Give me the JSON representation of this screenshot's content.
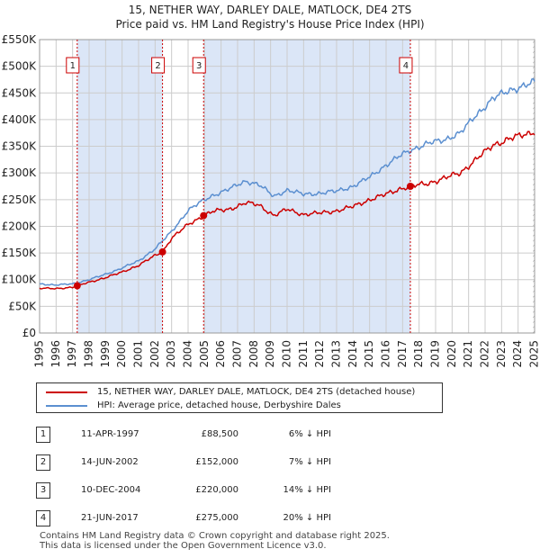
{
  "title_line1": "15, NETHER WAY, DARLEY DALE, MATLOCK, DE4 2TS",
  "title_line2": "Price paid vs. HM Land Registry's House Price Index (HPI)",
  "legend": {
    "property_label": "15, NETHER WAY, DARLEY DALE, MATLOCK, DE4 2TS (detached house)",
    "hpi_label": "HPI: Average price, detached house, Derbyshire Dales"
  },
  "colors": {
    "property": "#cc0000",
    "hpi": "#5b8fd0",
    "shade": "#dbe6f7",
    "grid": "#cccccc",
    "marker_line": "#cc0000"
  },
  "chart_data": {
    "type": "line",
    "title": "Price paid vs. HM Land Registry's House Price Index (HPI)",
    "x_ticks": [
      "1995",
      "1996",
      "1997",
      "1998",
      "1999",
      "2000",
      "2001",
      "2002",
      "2003",
      "2004",
      "2005",
      "2006",
      "2007",
      "2008",
      "2009",
      "2010",
      "2011",
      "2012",
      "2013",
      "2014",
      "2015",
      "2016",
      "2017",
      "2018",
      "2019",
      "2020",
      "2021",
      "2022",
      "2023",
      "2024",
      "2025"
    ],
    "y_ticks": [
      "£0",
      "£50K",
      "£100K",
      "£150K",
      "£200K",
      "£250K",
      "£300K",
      "£350K",
      "£400K",
      "£450K",
      "£500K",
      "£550K"
    ],
    "xlim": [
      1995.0,
      2025.0
    ],
    "ylim": [
      0,
      550000
    ],
    "hpi_anchors": [
      [
        1995.0,
        92000
      ],
      [
        1996.0,
        90000
      ],
      [
        1997.0,
        92000
      ],
      [
        1998.0,
        100000
      ],
      [
        1999.0,
        110000
      ],
      [
        2000.0,
        122000
      ],
      [
        2001.0,
        135000
      ],
      [
        2002.0,
        158000
      ],
      [
        2003.0,
        190000
      ],
      [
        2004.0,
        230000
      ],
      [
        2004.9,
        248000
      ],
      [
        2005.5,
        258000
      ],
      [
        2006.5,
        270000
      ],
      [
        2007.5,
        285000
      ],
      [
        2008.3,
        278000
      ],
      [
        2009.2,
        256000
      ],
      [
        2010.0,
        268000
      ],
      [
        2011.0,
        260000
      ],
      [
        2012.0,
        262000
      ],
      [
        2013.0,
        266000
      ],
      [
        2014.0,
        275000
      ],
      [
        2015.0,
        292000
      ],
      [
        2016.0,
        315000
      ],
      [
        2017.0,
        335000
      ],
      [
        2017.5,
        343000
      ],
      [
        2018.5,
        355000
      ],
      [
        2019.5,
        362000
      ],
      [
        2020.5,
        375000
      ],
      [
        2021.5,
        410000
      ],
      [
        2022.5,
        440000
      ],
      [
        2023.5,
        455000
      ],
      [
        2024.5,
        465000
      ],
      [
        2025.0,
        470000
      ]
    ],
    "property_anchors": [
      [
        1995.0,
        84000
      ],
      [
        1996.0,
        83000
      ],
      [
        1997.0,
        86000
      ],
      [
        1997.28,
        88500
      ],
      [
        1998.0,
        95000
      ],
      [
        1999.0,
        104000
      ],
      [
        2000.0,
        114000
      ],
      [
        2001.0,
        127000
      ],
      [
        2002.0,
        145000
      ],
      [
        2002.45,
        152000
      ],
      [
        2003.0,
        178000
      ],
      [
        2004.0,
        203000
      ],
      [
        2004.94,
        220000
      ],
      [
        2005.5,
        228000
      ],
      [
        2006.5,
        232000
      ],
      [
        2007.5,
        244000
      ],
      [
        2008.3,
        240000
      ],
      [
        2009.2,
        220000
      ],
      [
        2010.0,
        232000
      ],
      [
        2011.0,
        222000
      ],
      [
        2012.0,
        225000
      ],
      [
        2013.0,
        229000
      ],
      [
        2014.0,
        237000
      ],
      [
        2015.0,
        250000
      ],
      [
        2016.0,
        260000
      ],
      [
        2017.0,
        272000
      ],
      [
        2017.47,
        275000
      ],
      [
        2018.5,
        280000
      ],
      [
        2019.5,
        290000
      ],
      [
        2020.5,
        300000
      ],
      [
        2021.5,
        327000
      ],
      [
        2022.5,
        352000
      ],
      [
        2023.5,
        365000
      ],
      [
        2024.5,
        372000
      ],
      [
        2025.0,
        378000
      ]
    ],
    "series_names": [
      "15, NETHER WAY, DARLEY DALE, MATLOCK, DE4 2TS (detached house)",
      "HPI: Average price, detached house, Derbyshire Dales"
    ],
    "sales": [
      {
        "num": "1",
        "date": "11-APR-1997",
        "price": "£88,500",
        "hpi_diff": "6% ↓ HPI",
        "x": 1997.28,
        "value": 88500
      },
      {
        "num": "2",
        "date": "14-JUN-2002",
        "price": "£152,000",
        "hpi_diff": "7% ↓ HPI",
        "x": 2002.45,
        "value": 152000
      },
      {
        "num": "3",
        "date": "10-DEC-2004",
        "price": "£220,000",
        "hpi_diff": "14% ↓ HPI",
        "x": 2004.94,
        "value": 220000
      },
      {
        "num": "4",
        "date": "21-JUN-2017",
        "price": "£275,000",
        "hpi_diff": "20% ↓ HPI",
        "x": 2017.47,
        "value": 275000
      }
    ],
    "shaded_ranges": [
      [
        1997.28,
        2002.45
      ],
      [
        2004.94,
        2017.47
      ]
    ],
    "hatched_from": 2024.9
  },
  "footer": {
    "line1": "Contains HM Land Registry data © Crown copyright and database right 2025.",
    "line2": "This data is licensed under the Open Government Licence v3.0."
  }
}
